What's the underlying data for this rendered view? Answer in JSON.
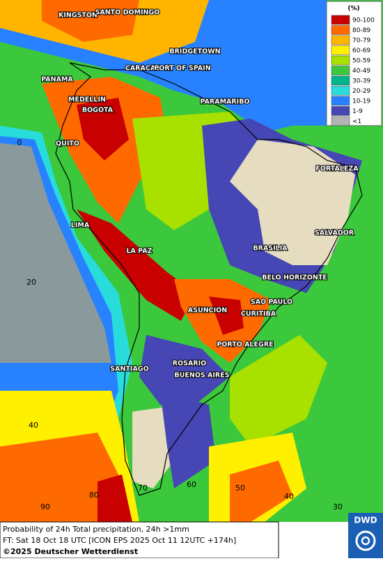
{
  "legend": {
    "title": "(%)",
    "items": [
      {
        "label": "90-100",
        "color": "#c80000"
      },
      {
        "label": "80-89",
        "color": "#ff6a00"
      },
      {
        "label": "70-79",
        "color": "#ffb400"
      },
      {
        "label": "60-69",
        "color": "#fff000"
      },
      {
        "label": "50-59",
        "color": "#a8e000"
      },
      {
        "label": "40-49",
        "color": "#3cc83c"
      },
      {
        "label": "30-39",
        "color": "#00b48c"
      },
      {
        "label": "20-29",
        "color": "#28dcdc"
      },
      {
        "label": "10-19",
        "color": "#2882ff"
      },
      {
        "label": "1-9",
        "color": "#4646b4"
      },
      {
        "label": "<1",
        "color": "#b4b4b4"
      }
    ]
  },
  "cities": [
    "KINGSTON",
    "SANTO DOMINGO",
    "BRIDGETOWN",
    "CARACAS",
    "PORT OF SPAIN",
    "PANAMA",
    "MEDELLIN",
    "PARAMARIBO",
    "BOGOTA",
    "QUITO",
    "FORTALEZA",
    "LIMA",
    "SALVADOR",
    "BRASILIA",
    "LA PAZ",
    "BELO HORIZONTE",
    "SAO PAULO",
    "ASUNCION",
    "CURITIBA",
    "PORTO ALEGRE",
    "ROSARIO",
    "BUENOS AIRES",
    "SANTIAGO"
  ],
  "grid_labels": [
    "0",
    "20",
    "40",
    "90",
    "80",
    "70",
    "60",
    "50",
    "40",
    "30"
  ],
  "footer": {
    "line1": "Probability of 24h Total precipitation, 24h >1mm",
    "line2": "FT: Sat 18 Oct 18 UTC [ICON EPS 2025 Oct 11 12UTC +174h]",
    "copyright": "©2025 Deutscher Wetterdienst"
  },
  "logo": "DWD"
}
